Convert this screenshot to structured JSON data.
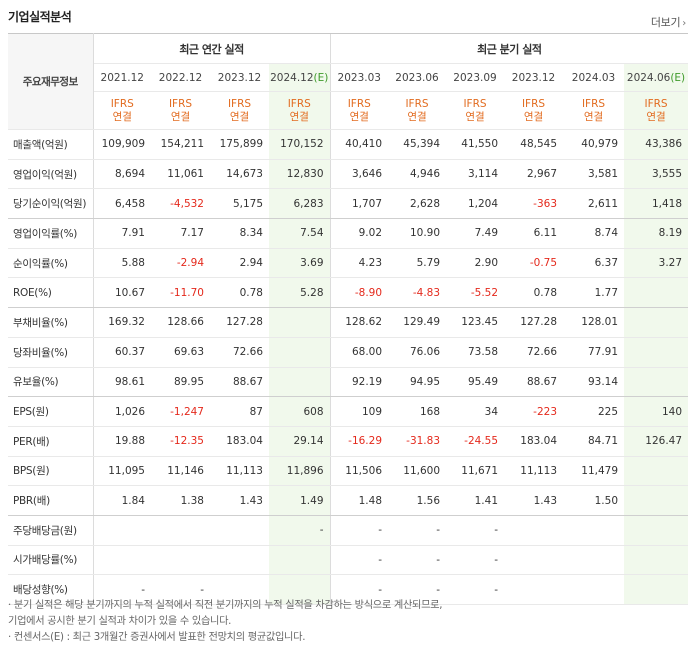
{
  "title": "기업실적분석",
  "more_label": "더보기",
  "header_label": "주요재무정보",
  "groups": {
    "annual": "최근 연간 실적",
    "quarter": "최근 분기 실적"
  },
  "periods": [
    "2021.12",
    "2022.12",
    "2023.12",
    "2024.12",
    "2023.03",
    "2023.06",
    "2023.09",
    "2023.12",
    "2024.03",
    "2024.06"
  ],
  "estimate_marker": "(E)",
  "ifrs_top": "IFRS",
  "ifrs_bottom": "연결",
  "rows": [
    {
      "label": "매출액(억원)",
      "values": [
        "109,909",
        "154,211",
        "175,899",
        "170,152",
        "40,410",
        "45,394",
        "41,550",
        "48,545",
        "40,979",
        "43,386"
      ]
    },
    {
      "label": "영업이익(억원)",
      "values": [
        "8,694",
        "11,061",
        "14,673",
        "12,830",
        "3,646",
        "4,946",
        "3,114",
        "2,967",
        "3,581",
        "3,555"
      ]
    },
    {
      "label": "당기순이익(억원)",
      "values": [
        "6,458",
        "-4,532",
        "5,175",
        "6,283",
        "1,707",
        "2,628",
        "1,204",
        "-363",
        "2,611",
        "1,418"
      ]
    },
    {
      "label": "영업이익률(%)",
      "values": [
        "7.91",
        "7.17",
        "8.34",
        "7.54",
        "9.02",
        "10.90",
        "7.49",
        "6.11",
        "8.74",
        "8.19"
      ]
    },
    {
      "label": "순이익률(%)",
      "values": [
        "5.88",
        "-2.94",
        "2.94",
        "3.69",
        "4.23",
        "5.79",
        "2.90",
        "-0.75",
        "6.37",
        "3.27"
      ]
    },
    {
      "label": "ROE(%)",
      "values": [
        "10.67",
        "-11.70",
        "0.78",
        "5.28",
        "-8.90",
        "-4.83",
        "-5.52",
        "0.78",
        "1.77",
        ""
      ]
    },
    {
      "label": "부채비율(%)",
      "values": [
        "169.32",
        "128.66",
        "127.28",
        "",
        "128.62",
        "129.49",
        "123.45",
        "127.28",
        "128.01",
        ""
      ]
    },
    {
      "label": "당좌비율(%)",
      "values": [
        "60.37",
        "69.63",
        "72.66",
        "",
        "68.00",
        "76.06",
        "73.58",
        "72.66",
        "77.91",
        ""
      ]
    },
    {
      "label": "유보율(%)",
      "values": [
        "98.61",
        "89.95",
        "88.67",
        "",
        "92.19",
        "94.95",
        "95.49",
        "88.67",
        "93.14",
        ""
      ]
    },
    {
      "label": "EPS(원)",
      "values": [
        "1,026",
        "-1,247",
        "87",
        "608",
        "109",
        "168",
        "34",
        "-223",
        "225",
        "140"
      ]
    },
    {
      "label": "PER(배)",
      "values": [
        "19.88",
        "-12.35",
        "183.04",
        "29.14",
        "-16.29",
        "-31.83",
        "-24.55",
        "183.04",
        "84.71",
        "126.47"
      ]
    },
    {
      "label": "BPS(원)",
      "values": [
        "11,095",
        "11,146",
        "11,113",
        "11,896",
        "11,506",
        "11,600",
        "11,671",
        "11,113",
        "11,479",
        ""
      ]
    },
    {
      "label": "PBR(배)",
      "values": [
        "1.84",
        "1.38",
        "1.43",
        "1.49",
        "1.48",
        "1.56",
        "1.41",
        "1.43",
        "1.50",
        ""
      ]
    },
    {
      "label": "주당배당금(원)",
      "values": [
        "",
        "",
        "",
        "-",
        "-",
        "-",
        "-",
        "",
        "",
        ""
      ]
    },
    {
      "label": "시가배당률(%)",
      "values": [
        "",
        "",
        "",
        "",
        "-",
        "-",
        "-",
        "",
        "",
        ""
      ]
    },
    {
      "label": "배당성향(%)",
      "values": [
        "-",
        "-",
        "",
        "",
        "-",
        "-",
        "-",
        "",
        "",
        ""
      ]
    }
  ],
  "footnotes": [
    "· 분기 실적은 해당 분기까지의 누적 실적에서 직전 분기까지의 누적 실적을 차감하는 방식으로 계산되므로,",
    "  기업에서 공시한 분기 실적과 차이가 있을 수 있습니다.",
    "· 컨센서스(E) : 최근 3개월간 증권사에서 발표한 전망치의 평균값입니다."
  ]
}
